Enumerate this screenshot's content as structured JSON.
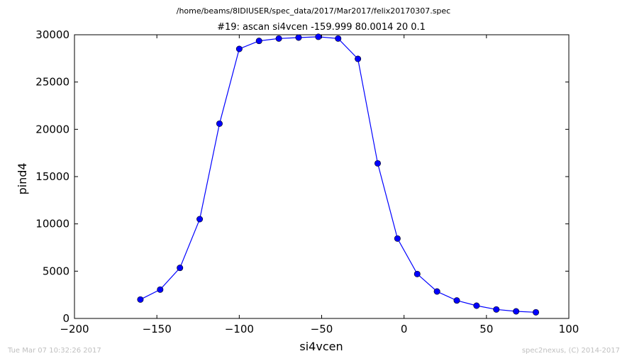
{
  "file_path": "/home/beams/8IDIUSER/spec_data/2017/Mar2017/felix20170307.spec",
  "footer": {
    "timestamp": "Tue Mar 07 10:32:26 2017",
    "credit": "spec2nexus, (C) 2014-2017"
  },
  "chart_data": {
    "type": "line",
    "title": "#19: ascan  si4vcen -159.999 80.0014  20 0.1",
    "xlabel": "si4vcen",
    "ylabel": "pind4",
    "xlim": [
      -200,
      100
    ],
    "ylim": [
      0,
      30000
    ],
    "x_ticks": [
      -200,
      -150,
      -100,
      -50,
      0,
      50,
      100
    ],
    "y_ticks": [
      0,
      5000,
      10000,
      15000,
      20000,
      25000,
      30000
    ],
    "grid": false,
    "color": "#0000ff",
    "marker": "circle",
    "series": [
      {
        "x": [
          -160.0,
          -148.0,
          -136.0,
          -124.0,
          -112.0,
          -100.0,
          -88.0,
          -76.0,
          -64.0,
          -52.0,
          -40.0,
          -28.0,
          -16.0,
          -4.0,
          8.0,
          20.0,
          32.0,
          44.0,
          56.0,
          68.0,
          80.0
        ],
        "values": [
          2000,
          3050,
          5350,
          10500,
          20600,
          28500,
          29350,
          29600,
          29700,
          29780,
          29600,
          27450,
          16400,
          8450,
          4700,
          2850,
          1900,
          1350,
          950,
          750,
          650
        ]
      }
    ]
  }
}
